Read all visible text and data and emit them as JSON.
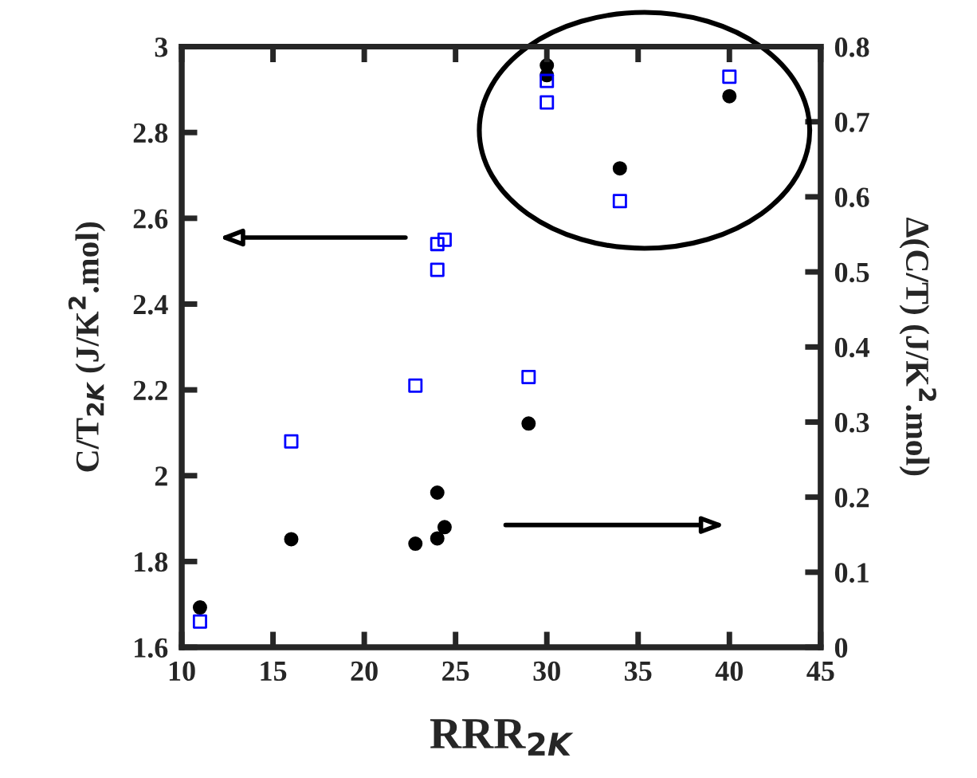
{
  "chart_data": {
    "type": "scatter",
    "xlabel": "RRR$_{2K}$",
    "ylabel": "C/T$_{2K}$ (J/K$^{2}$.mol)",
    "y2label": "Δ(C/T) (J/K$^{2}$.mol)",
    "series": [
      {
        "color": "#0000ff",
        "marker": "square",
        "x": [
          11,
          16,
          22.8,
          24,
          24,
          24.4,
          29,
          30,
          30,
          34,
          40
        ],
        "values": [
          1.66,
          2.08,
          2.21,
          2.48,
          2.54,
          2.55,
          2.23,
          2.92,
          2.87,
          2.64,
          2.93
        ]
      },
      {
        "color": "#000000",
        "marker": "circle",
        "axis": "y2",
        "x": [
          11,
          16,
          22.8,
          24,
          24,
          24.4,
          29,
          30,
          30,
          34,
          40
        ],
        "values": [
          0.053,
          0.144,
          0.138,
          0.145,
          0.206,
          0.16,
          0.298,
          0.775,
          0.762,
          0.638,
          0.734
        ]
      }
    ],
    "xlim": [
      10,
      45
    ],
    "xticks": [
      10,
      15,
      20,
      25,
      30,
      35,
      40,
      45
    ],
    "ylim": [
      1.6,
      3
    ],
    "yticks": [
      1.6,
      1.8,
      2,
      2.2,
      2.4,
      2.6,
      2.8,
      3
    ],
    "y2lim": [
      0,
      0.8
    ],
    "y2ticks": [
      0,
      0.1,
      0.2,
      0.3,
      0.4,
      0.5,
      0.6,
      0.7,
      0.8
    ],
    "grid": false,
    "legend": false
  }
}
